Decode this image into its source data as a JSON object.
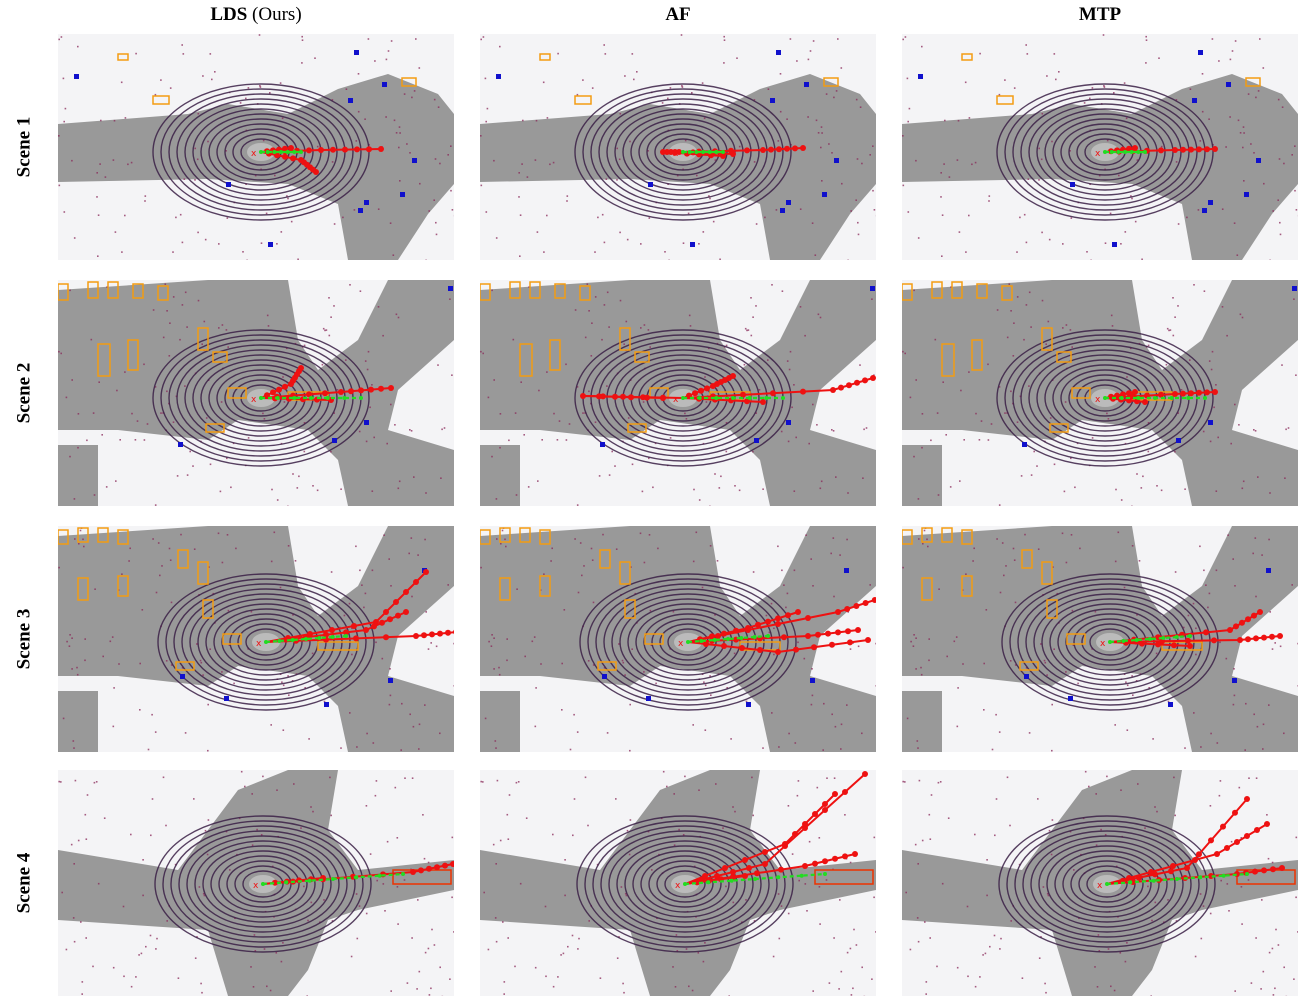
{
  "columns": [
    {
      "bold": "LDS",
      "rest": " (Ours)"
    },
    {
      "bold": "AF",
      "rest": ""
    },
    {
      "bold": "MTP",
      "rest": ""
    }
  ],
  "rows": [
    {
      "label": "Scene 1"
    },
    {
      "label": "Scene 2"
    },
    {
      "label": "Scene 3"
    },
    {
      "label": "Scene 4"
    }
  ],
  "colors": {
    "road": "#999999",
    "background": "#f4f4f6",
    "lidar_ring": "#3a1f45",
    "lidar_points": "#8a2a5a",
    "vehicle_box": "#f39c12",
    "pedestrian_box": "#1010cc",
    "ground_truth": "#22dd22",
    "prediction": "#ee1111"
  }
}
